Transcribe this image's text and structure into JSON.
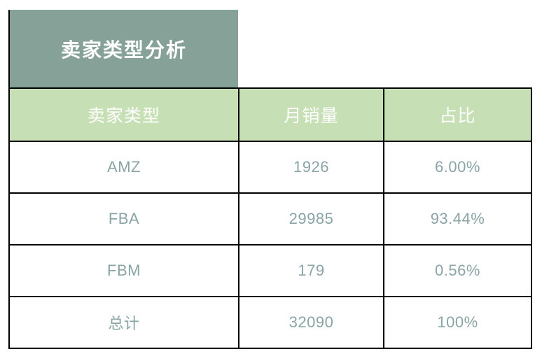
{
  "colors": {
    "background": "#FFFFFF",
    "title_bg": "#86A198",
    "header_bg": "#C6DFB4",
    "header_text": "#FFFFFF",
    "data_text": "#8AA4A6",
    "border": "#000000"
  },
  "chart_data": {
    "type": "table",
    "title": "卖家类型分析",
    "columns": [
      "卖家类型",
      "月销量",
      "占比"
    ],
    "rows": [
      [
        "AMZ",
        "1926",
        "6.00%"
      ],
      [
        "FBA",
        "29985",
        "93.44%"
      ],
      [
        "FBM",
        "179",
        "0.56%"
      ],
      [
        "总计",
        "32090",
        "100%"
      ]
    ],
    "notes": {
      "monthly_sales_values": [
        1926,
        29985,
        179,
        32090
      ],
      "share_percent_values": [
        6.0,
        93.44,
        0.56,
        100
      ]
    }
  }
}
